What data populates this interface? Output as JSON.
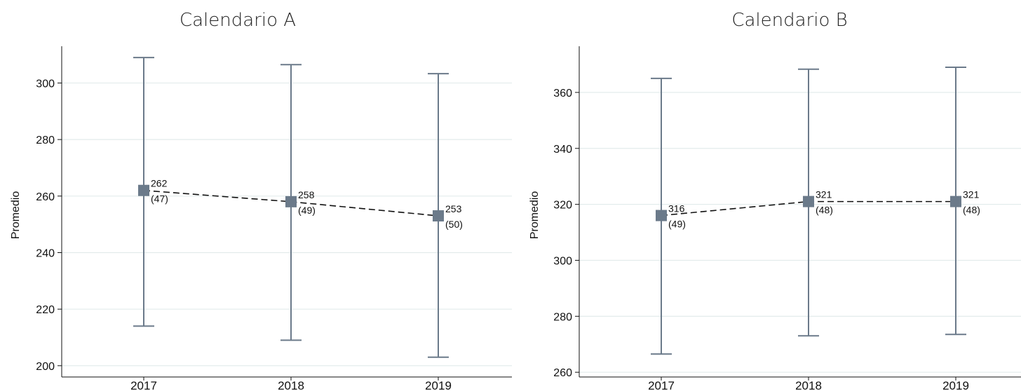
{
  "chart_data": [
    {
      "type": "errorbar",
      "title": "Calendario A",
      "xlabel": "",
      "ylabel": "Promedio",
      "categories": [
        "2017",
        "2018",
        "2019"
      ],
      "values": [
        262,
        258,
        253
      ],
      "ci_low": [
        214,
        209,
        203
      ],
      "ci_high": [
        309,
        306.5,
        303.3
      ],
      "point_labels": [
        "262",
        "258",
        "253"
      ],
      "sd_labels": [
        "(47)",
        "(49)",
        "(50)"
      ],
      "y_ticks": [
        200,
        220,
        240,
        260,
        280,
        300
      ],
      "ylim": [
        196,
        313
      ],
      "grid": true,
      "colors": {
        "marker": "#6b7a8a",
        "bar": "#6b7a8a",
        "line": "#111111",
        "grid": "#e3ecec"
      }
    },
    {
      "type": "errorbar",
      "title": "Calendario B",
      "xlabel": "",
      "ylabel": "Promedio",
      "categories": [
        "2017",
        "2018",
        "2019"
      ],
      "values": [
        316,
        321,
        321
      ],
      "ci_low": [
        266.5,
        273,
        273.5
      ],
      "ci_high": [
        365,
        368.3,
        369
      ],
      "point_labels": [
        "316",
        "321",
        "321"
      ],
      "sd_labels": [
        "(49)",
        "(48)",
        "(48)"
      ],
      "y_ticks": [
        260,
        280,
        300,
        320,
        340,
        360
      ],
      "ylim": [
        258.3,
        376.5
      ],
      "grid": true,
      "colors": {
        "marker": "#6b7a8a",
        "bar": "#6b7a8a",
        "line": "#111111",
        "grid": "#e3ecec"
      }
    }
  ]
}
